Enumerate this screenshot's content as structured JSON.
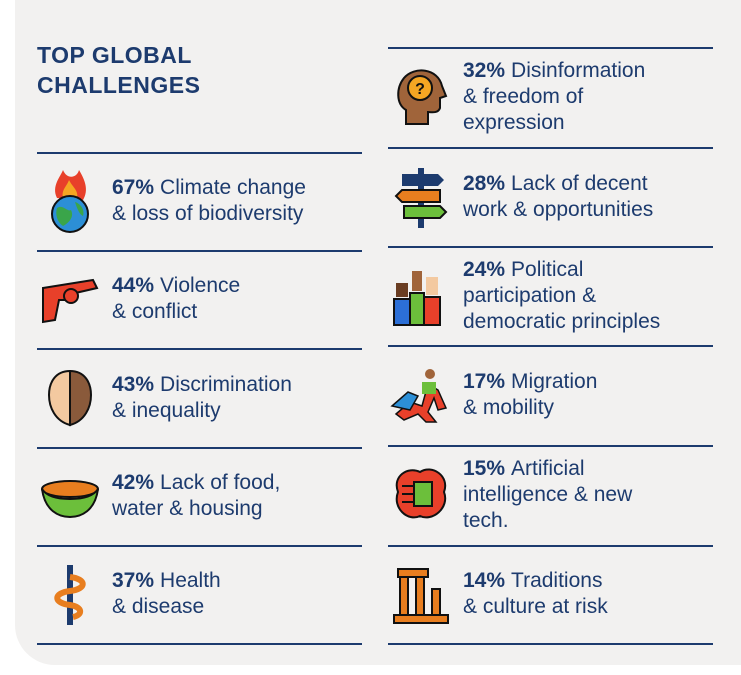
{
  "title": "TOP GLOBAL CHALLENGES",
  "left": [
    {
      "percent": "67%",
      "label": [
        "Climate change",
        "& loss of biodiversity"
      ]
    },
    {
      "percent": "44%",
      "label": [
        "Violence",
        "& conflict"
      ]
    },
    {
      "percent": "43%",
      "label": [
        "Discrimination",
        "& inequality"
      ]
    },
    {
      "percent": "42%",
      "label": [
        "Lack of food,",
        "water & housing"
      ]
    },
    {
      "percent": "37%",
      "label": [
        "Health",
        "& disease"
      ]
    }
  ],
  "right": [
    {
      "percent": "32%",
      "label": [
        "Disinformation",
        "& freedom of",
        "expression"
      ]
    },
    {
      "percent": "28%",
      "label": [
        "Lack of decent",
        "work & opportunities"
      ]
    },
    {
      "percent": "24%",
      "label": [
        "Political",
        "participation &",
        "democratic principles"
      ]
    },
    {
      "percent": "17%",
      "label": [
        "Migration",
        "& mobility"
      ]
    },
    {
      "percent": "15%",
      "label": [
        "Artificial",
        "intelligence & new",
        "tech."
      ]
    },
    {
      "percent": "14%",
      "label": [
        "Traditions",
        "& culture at risk"
      ]
    }
  ]
}
